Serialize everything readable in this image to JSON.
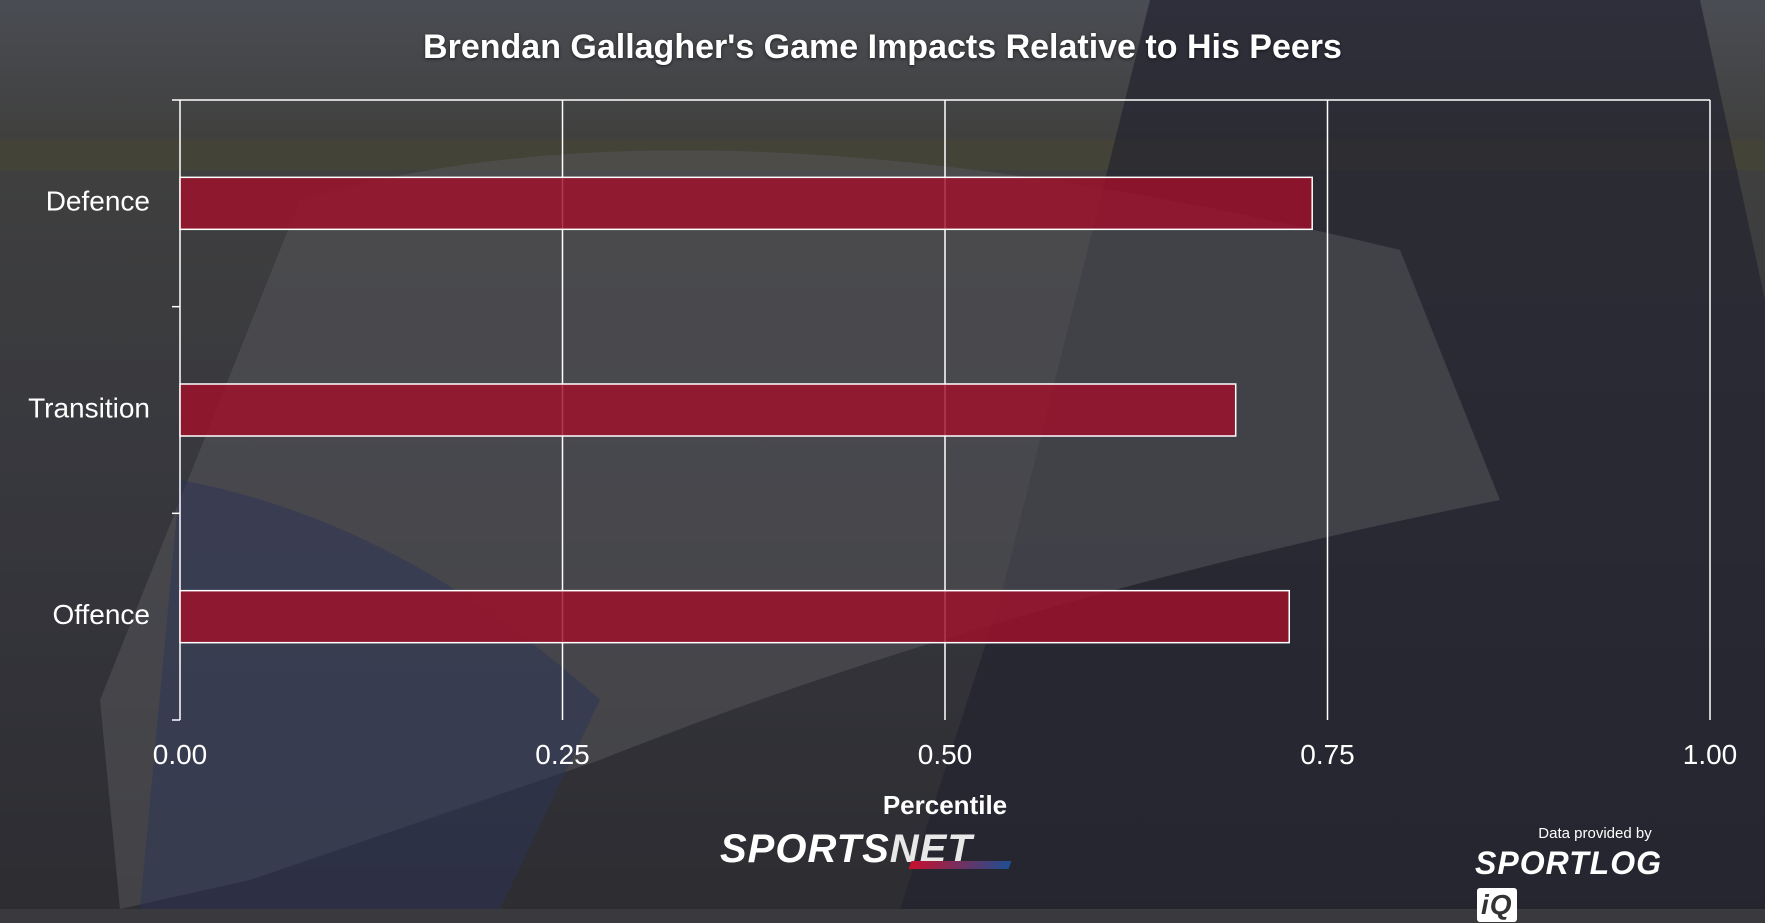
{
  "title": "Brendan Gallagher's Game Impacts Relative to His Peers",
  "colors": {
    "bar_fill": "#a0102a",
    "bar_stroke": "#ffffff",
    "grid": "#ffffff",
    "text": "#ffffff",
    "background_overlay": "#2b2b30"
  },
  "chart_data": {
    "type": "bar",
    "orientation": "horizontal",
    "title": "Brendan Gallagher's Game Impacts Relative to His Peers",
    "xlabel": "Percentile",
    "ylabel": "",
    "categories": [
      "Defence",
      "Transition",
      "Offence"
    ],
    "values": [
      0.74,
      0.69,
      0.725
    ],
    "xlim": [
      0,
      1
    ],
    "xticks": [
      "0.00",
      "0.25",
      "0.50",
      "0.75",
      "1.00"
    ],
    "xtick_values": [
      0,
      0.25,
      0.5,
      0.75,
      1
    ],
    "grid": true,
    "legend": "none"
  },
  "footer": {
    "brand_left_a": "SPORTS",
    "brand_left_b": "NET",
    "credit": "Data provided by",
    "brand_right_a": "SPORTLOG",
    "brand_right_b": "iQ"
  }
}
